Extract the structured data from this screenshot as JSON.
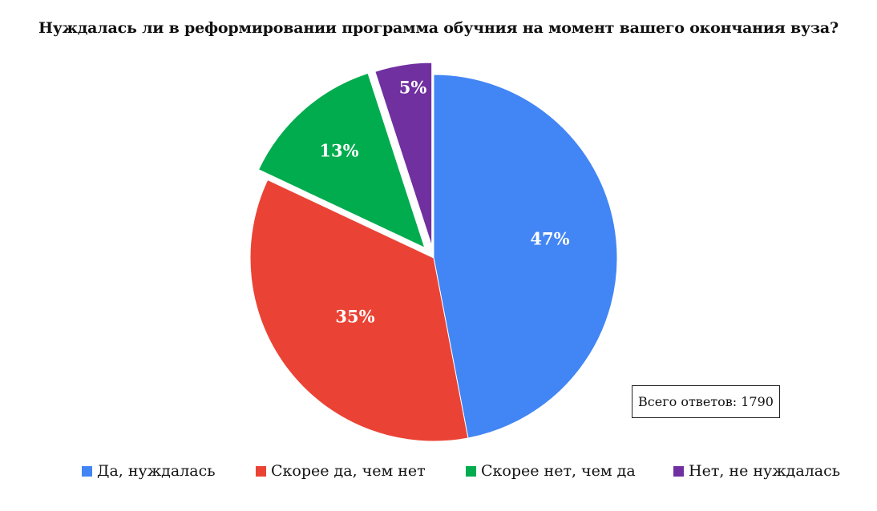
{
  "title": "Нуждалась ли в реформировании программа обучния на момент вашего окончания вуза?",
  "total": {
    "label": "Всего ответов:",
    "value": "1790",
    "text": "Всего ответов: 1790"
  },
  "colors": {
    "blue": "#4285F4",
    "red": "#EA4335",
    "green": "#00AC4E",
    "purple": "#7030A0"
  },
  "legend": [
    {
      "label": "Да, нуждалась",
      "color": "#4285F4"
    },
    {
      "label": "Скорее да, чем нет",
      "color": "#EA4335"
    },
    {
      "label": "Скорее нет, чем да",
      "color": "#00AC4E"
    },
    {
      "label": "Нет, не нуждалась",
      "color": "#7030A0"
    }
  ],
  "chart_data": {
    "type": "pie",
    "title": "Нуждалась ли в реформировании программа обучния на момент вашего окончания вуза?",
    "categories": [
      "Да, нуждалась",
      "Скорее да, чем нет",
      "Скорее нет, чем да",
      "Нет, не нуждалась"
    ],
    "values": [
      47,
      35,
      13,
      5
    ],
    "labels": [
      "47%",
      "35%",
      "13%",
      "5%"
    ],
    "colors": [
      "#4285F4",
      "#EA4335",
      "#00AC4E",
      "#7030A0"
    ],
    "exploded": [
      false,
      false,
      true,
      true
    ],
    "legend_position": "bottom",
    "annotation": "Всего ответов: 1790",
    "total_responses": 1790
  }
}
